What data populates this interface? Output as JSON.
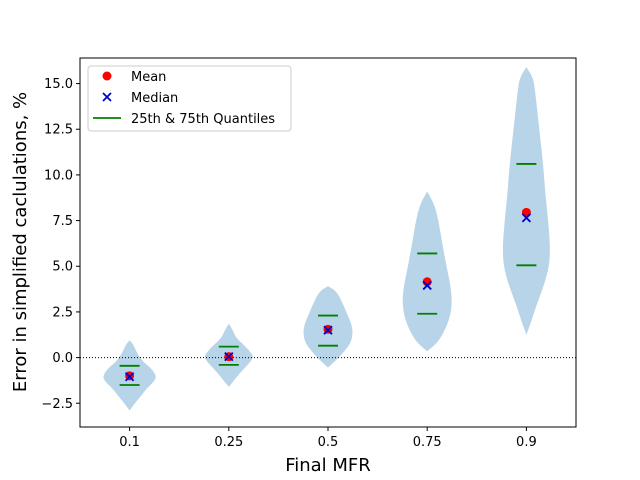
{
  "chart_data": {
    "type": "violin",
    "xlabel": "Final MFR",
    "ylabel": "Error in simplified caclulations, %",
    "categories": [
      "0.1",
      "0.25",
      "0.5",
      "0.75",
      "0.9"
    ],
    "ylim": [
      -3.8,
      16.4
    ],
    "yticks": [
      -2.5,
      0.0,
      2.5,
      5.0,
      7.5,
      10.0,
      12.5,
      15.0
    ],
    "ytick_labels": [
      "−2.5",
      "0.0",
      "2.5",
      "5.0",
      "7.5",
      "10.0",
      "12.5",
      "15.0"
    ],
    "reference_line": {
      "y": 0.0,
      "style": "dotted",
      "color": "#000000"
    },
    "legend": {
      "placement": "upper-left",
      "entries": [
        {
          "label": "Mean",
          "marker": "circle",
          "color": "#ff0000"
        },
        {
          "label": "Median",
          "marker": "x",
          "color": "#0000cc"
        },
        {
          "label": "25th & 75th Quantiles",
          "marker": "line",
          "color": "#008000"
        }
      ]
    },
    "colors": {
      "violin": "#b8d4e8",
      "mean": "#ff0000",
      "median": "#0000cc",
      "quantile": "#008000"
    },
    "violins": [
      {
        "category": "0.1",
        "mean": -1.0,
        "median": -1.05,
        "q25": -1.5,
        "q75": -0.45,
        "profile": [
          [
            -2.9,
            0.0
          ],
          [
            -2.6,
            0.04
          ],
          [
            -2.2,
            0.1
          ],
          [
            -1.7,
            0.17
          ],
          [
            -1.3,
            0.25
          ],
          [
            -1.0,
            0.27
          ],
          [
            -0.6,
            0.22
          ],
          [
            -0.2,
            0.13
          ],
          [
            0.3,
            0.07
          ],
          [
            0.7,
            0.04
          ],
          [
            0.95,
            0.0
          ]
        ]
      },
      {
        "category": "0.25",
        "mean": 0.05,
        "median": 0.05,
        "q25": -0.4,
        "q75": 0.6,
        "profile": [
          [
            -1.6,
            0.0
          ],
          [
            -1.2,
            0.06
          ],
          [
            -0.8,
            0.12
          ],
          [
            -0.4,
            0.19
          ],
          [
            0.0,
            0.25
          ],
          [
            0.3,
            0.22
          ],
          [
            0.7,
            0.15
          ],
          [
            1.1,
            0.07
          ],
          [
            1.5,
            0.04
          ],
          [
            1.85,
            0.0
          ]
        ]
      },
      {
        "category": "0.5",
        "mean": 1.55,
        "median": 1.5,
        "q25": 0.65,
        "q75": 2.3,
        "profile": [
          [
            -0.55,
            0.0
          ],
          [
            -0.2,
            0.07
          ],
          [
            0.3,
            0.16
          ],
          [
            0.8,
            0.23
          ],
          [
            1.3,
            0.25
          ],
          [
            1.8,
            0.24
          ],
          [
            2.3,
            0.2
          ],
          [
            2.8,
            0.16
          ],
          [
            3.3,
            0.12
          ],
          [
            3.7,
            0.07
          ],
          [
            3.9,
            0.0
          ]
        ]
      },
      {
        "category": "0.75",
        "mean": 4.15,
        "median": 3.95,
        "q25": 2.4,
        "q75": 5.7,
        "profile": [
          [
            0.35,
            0.0
          ],
          [
            0.8,
            0.1
          ],
          [
            1.4,
            0.17
          ],
          [
            2.2,
            0.23
          ],
          [
            3.0,
            0.25
          ],
          [
            3.8,
            0.24
          ],
          [
            4.6,
            0.21
          ],
          [
            5.4,
            0.18
          ],
          [
            6.3,
            0.15
          ],
          [
            7.3,
            0.12
          ],
          [
            8.3,
            0.08
          ],
          [
            9.1,
            0.0
          ]
        ]
      },
      {
        "category": "0.9",
        "mean": 7.95,
        "median": 7.65,
        "q25": 5.05,
        "q75": 10.6,
        "profile": [
          [
            1.25,
            0.0
          ],
          [
            2.0,
            0.05
          ],
          [
            3.0,
            0.11
          ],
          [
            4.0,
            0.18
          ],
          [
            5.0,
            0.23
          ],
          [
            6.0,
            0.24
          ],
          [
            7.5,
            0.22
          ],
          [
            9.0,
            0.19
          ],
          [
            10.5,
            0.17
          ],
          [
            12.0,
            0.14
          ],
          [
            13.5,
            0.11
          ],
          [
            14.5,
            0.09
          ],
          [
            15.3,
            0.07
          ],
          [
            15.9,
            0.0
          ]
        ]
      }
    ]
  }
}
